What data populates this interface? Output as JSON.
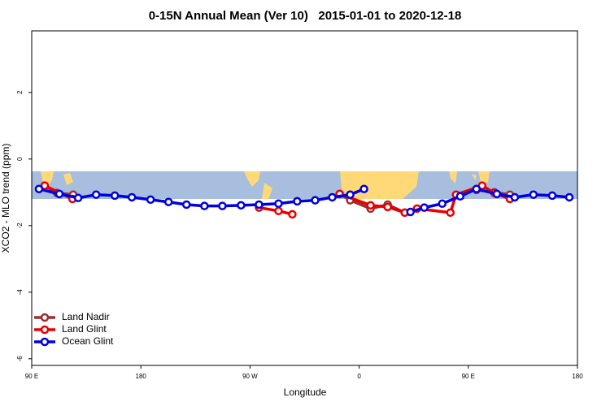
{
  "chart_data": {
    "type": "line",
    "title": "0-15N Annual Mean (Ver 10)   2015-01-01 to 2020-12-18",
    "xlabel": "Longitude",
    "ylabel": "XCO2 - MLO trend (ppm)",
    "xlim": [
      90,
      540
    ],
    "ylim": [
      -6.2,
      3.85
    ],
    "xticks": [
      {
        "value": 90,
        "label": "90 E"
      },
      180,
      {
        "value": 270,
        "label": "90 W"
      },
      {
        "value": 360,
        "label": "0"
      },
      {
        "value": 450,
        "label": "90 E"
      },
      {
        "value": 540,
        "label": "180"
      }
    ],
    "yticks": [
      -6,
      -4,
      -2,
      0,
      2
    ],
    "legend": "bottom-left",
    "series": [
      {
        "name": "Land Nadir",
        "color": "#9b2f2f",
        "x": [
          100.7,
          110.8,
          124.2,
          null,
          343.9,
          352.6,
          369.4,
          383.5,
          397.6,
          null,
          456.7,
          471.5,
          484.3
        ],
        "values": [
          -0.8,
          -1.02,
          -1.07,
          null,
          -1.05,
          -1.24,
          -1.49,
          -1.37,
          -1.61,
          null,
          -0.93,
          -1.0,
          -1.07
        ]
      },
      {
        "name": "Land Glint",
        "color": "#e80000",
        "x": [
          100.7,
          123.6,
          null,
          277.4,
          293.5,
          304.9,
          null,
          343.9,
          369.4,
          383.5,
          397.6,
          407.7,
          435.2,
          439.9,
          461.4,
          471.5,
          484.3
        ],
        "values": [
          -0.8,
          -1.2,
          null,
          -1.46,
          -1.56,
          -1.66,
          null,
          -1.05,
          -1.39,
          -1.44,
          -1.61,
          -1.49,
          -1.61,
          -1.07,
          -0.8,
          -1.02,
          -1.2
        ]
      },
      {
        "name": "Ocean Glint",
        "color": "#0000e0",
        "x": [
          96,
          112.8,
          128.3,
          143.1,
          158.5,
          172.6,
          188,
          202.8,
          217.6,
          232.4,
          247.2,
          262.6,
          277.4,
          293.5,
          308.9,
          323.7,
          337.8,
          352.6,
          364,
          null,
          402.3,
          413.7,
          428.5,
          443.3,
          456.7,
          473.5,
          488.3,
          503.7,
          519.2,
          533.3
        ],
        "values": [
          -0.9,
          -1.05,
          -1.17,
          -1.07,
          -1.1,
          -1.15,
          -1.22,
          -1.29,
          -1.37,
          -1.41,
          -1.41,
          -1.39,
          -1.37,
          -1.34,
          -1.27,
          -1.24,
          -1.15,
          -1.07,
          -0.9,
          null,
          -1.59,
          -1.46,
          -1.34,
          -1.12,
          -0.9,
          -1.05,
          -1.15,
          -1.07,
          -1.1,
          -1.15
        ]
      }
    ]
  }
}
